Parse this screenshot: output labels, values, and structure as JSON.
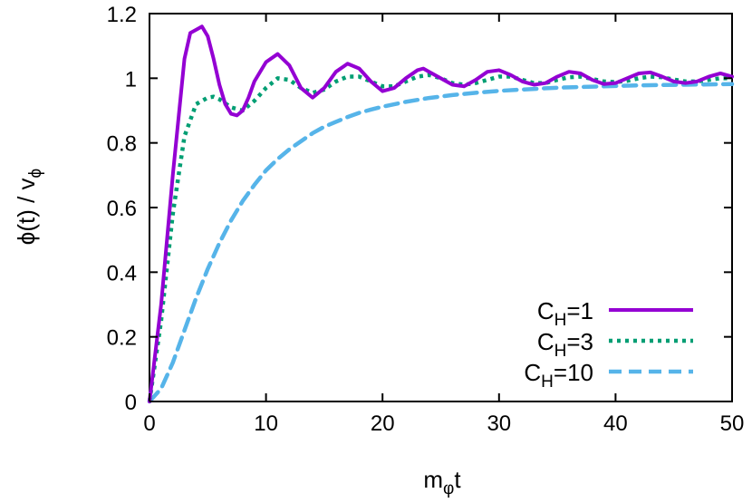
{
  "chart_data": {
    "type": "line",
    "title": "",
    "xlabel_main": "m",
    "xlabel_sub": "φ",
    "xlabel_tail": "t",
    "ylabel": "ϕ(t) / v",
    "ylabel_sub": "ϕ",
    "xlim": [
      0,
      50
    ],
    "ylim": [
      0,
      1.2
    ],
    "xticks": [
      0,
      10,
      20,
      30,
      40,
      50
    ],
    "xtick_labels": [
      "0",
      "10",
      "20",
      "30",
      "40",
      "50"
    ],
    "yticks": [
      0,
      0.2,
      0.4,
      0.6,
      0.8,
      1.0,
      1.2
    ],
    "ytick_labels": [
      "0",
      "0.2",
      "0.4",
      "0.6",
      "0.8",
      "1",
      "1.2"
    ],
    "grid": false,
    "legend_position": "bottom-right",
    "series": [
      {
        "name": "C_H=1",
        "legend_main": "C",
        "legend_sub": "H",
        "legend_tail": "=1",
        "color": "#9400d3",
        "style": "solid",
        "x": [
          0,
          1,
          2,
          3,
          3.5,
          4,
          4.5,
          5,
          5.5,
          6,
          6.5,
          7,
          7.5,
          8,
          8.5,
          9,
          10,
          11,
          12,
          13,
          14,
          15,
          16,
          17,
          18,
          19,
          20,
          21,
          22,
          23,
          23.5,
          24,
          25,
          26,
          27,
          28,
          29,
          30,
          31,
          32,
          33,
          34,
          35,
          36,
          37,
          38,
          39,
          40,
          41,
          42,
          43,
          44,
          45,
          46,
          47,
          48,
          49,
          50
        ],
        "y": [
          0,
          0.3,
          0.7,
          1.06,
          1.14,
          1.15,
          1.16,
          1.13,
          1.06,
          0.98,
          0.92,
          0.89,
          0.885,
          0.9,
          0.94,
          0.99,
          1.05,
          1.075,
          1.04,
          0.97,
          0.94,
          0.97,
          1.02,
          1.045,
          1.03,
          0.99,
          0.96,
          0.97,
          1.0,
          1.025,
          1.03,
          1.02,
          1.0,
          0.98,
          0.975,
          0.995,
          1.02,
          1.025,
          1.01,
          0.99,
          0.98,
          0.985,
          1.005,
          1.02,
          1.015,
          0.995,
          0.982,
          0.985,
          1.0,
          1.015,
          1.018,
          1.005,
          0.99,
          0.985,
          0.99,
          1.005,
          1.015,
          1.005
        ]
      },
      {
        "name": "C_H=3",
        "legend_main": "C",
        "legend_sub": "H",
        "legend_tail": "=3",
        "color": "#009e73",
        "style": "dotted",
        "x": [
          0,
          1,
          2,
          3,
          4,
          5,
          5.5,
          6,
          7,
          8,
          9,
          10,
          11,
          12,
          13,
          14,
          15,
          16,
          17,
          18,
          19,
          20,
          21,
          22,
          23,
          24,
          25,
          26,
          27,
          28,
          29,
          30,
          31,
          32,
          33,
          34,
          35,
          36,
          37,
          38,
          39,
          40,
          41,
          42,
          43,
          44,
          45,
          46,
          47,
          48,
          49,
          50
        ],
        "y": [
          0,
          0.25,
          0.58,
          0.82,
          0.92,
          0.94,
          0.943,
          0.935,
          0.91,
          0.9,
          0.93,
          0.97,
          1.0,
          0.995,
          0.97,
          0.955,
          0.965,
          0.99,
          1.005,
          1.005,
          0.99,
          0.975,
          0.975,
          0.99,
          1.005,
          1.01,
          1.0,
          0.985,
          0.98,
          0.985,
          0.995,
          1.005,
          1.005,
          0.995,
          0.985,
          0.985,
          0.995,
          1.003,
          1.005,
          0.998,
          0.99,
          0.988,
          0.992,
          1.0,
          1.005,
          1.003,
          0.996,
          0.99,
          0.99,
          0.995,
          1.0,
          1.0
        ]
      },
      {
        "name": "C_H=10",
        "legend_main": "C",
        "legend_sub": "H",
        "legend_tail": "=10",
        "color": "#56b4e9",
        "style": "dashed",
        "x": [
          0,
          1,
          2,
          3,
          4,
          5,
          6,
          7,
          8,
          9,
          10,
          11,
          12,
          13,
          14,
          15,
          16,
          17,
          18,
          19,
          20,
          22,
          24,
          26,
          28,
          30,
          32,
          34,
          36,
          38,
          40,
          42,
          44,
          46,
          48,
          50
        ],
        "y": [
          0,
          0.04,
          0.12,
          0.22,
          0.32,
          0.41,
          0.49,
          0.56,
          0.62,
          0.67,
          0.715,
          0.75,
          0.78,
          0.805,
          0.83,
          0.85,
          0.865,
          0.88,
          0.893,
          0.903,
          0.912,
          0.927,
          0.939,
          0.948,
          0.955,
          0.961,
          0.965,
          0.969,
          0.972,
          0.974,
          0.976,
          0.978,
          0.979,
          0.98,
          0.981,
          0.982
        ]
      }
    ]
  }
}
